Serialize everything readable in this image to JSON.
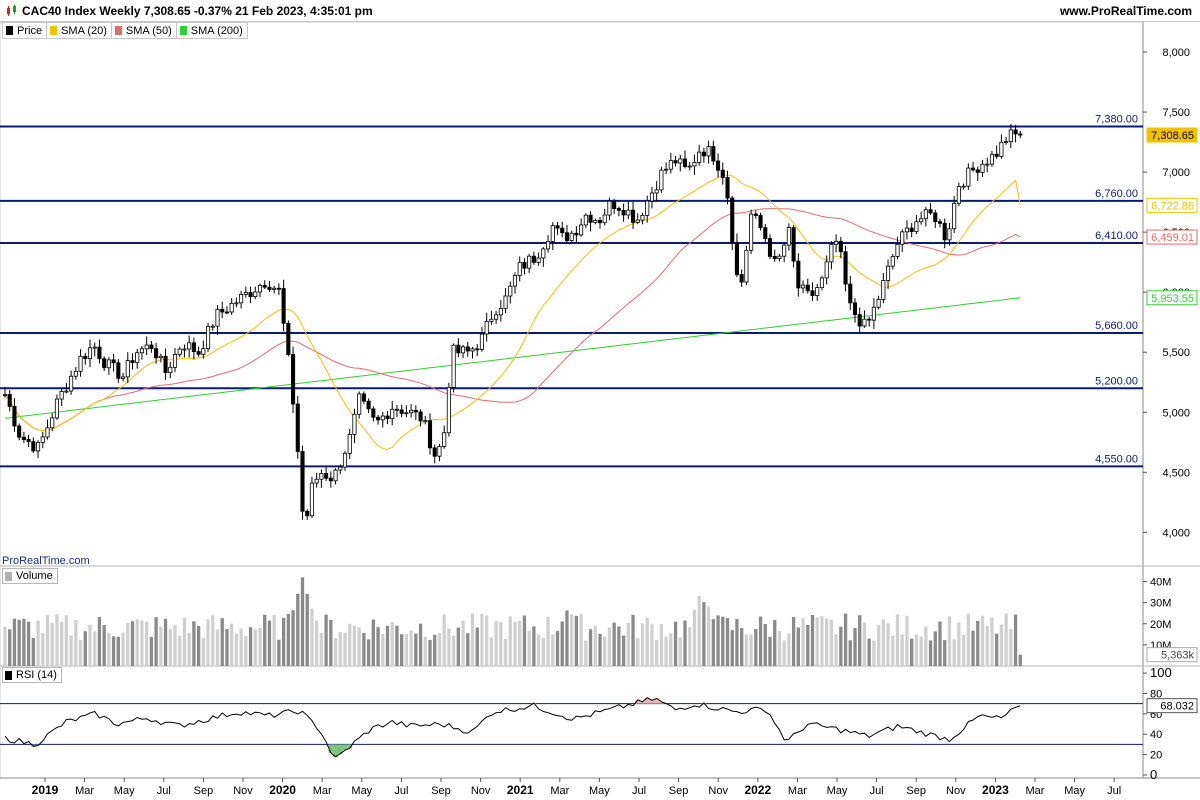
{
  "header": {
    "title": "CAC40 Index Weekly 7,308.65 -0.37% 21 Feb 2023, 4:35:01 pm",
    "site": "www.ProRealTime.com"
  },
  "legend": [
    {
      "label": "Price",
      "color": "#000000"
    },
    {
      "label": "SMA (20)",
      "color": "#f2c200"
    },
    {
      "label": "SMA (50)",
      "color": "#e06c6c"
    },
    {
      "label": "SMA (200)",
      "color": "#2fd02f"
    }
  ],
  "watermark": "ProRealTime.com",
  "volume_label": "Volume",
  "rsi_label": "RSI (14)",
  "chart_data": [
    {
      "type": "candlestick",
      "title": "CAC40 Index Weekly",
      "price_axis": {
        "ticks": [
          4000,
          4500,
          5000,
          5500,
          6000,
          6500,
          7000,
          7500,
          8000
        ],
        "tick_labels": [
          "4,000",
          "4,500",
          "5,000",
          "5,500",
          "6,000",
          "6,500",
          "7,000",
          "7,500",
          "8,000"
        ],
        "range": [
          3720,
          8250
        ]
      },
      "time_axis": {
        "labels": [
          "2019",
          "Mar",
          "May",
          "Jul",
          "Sep",
          "Nov",
          "2020",
          "Mar",
          "May",
          "Jul",
          "Sep",
          "Nov",
          "2021",
          "Mar",
          "May",
          "Jul",
          "Sep",
          "Nov",
          "2022",
          "Mar",
          "May",
          "Jul",
          "Sep",
          "Nov",
          "2023",
          "Mar",
          "May",
          "Jul"
        ],
        "bold": [
          "2019",
          "2020",
          "2021",
          "2022",
          "2023"
        ],
        "range": [
          "2019-01",
          "2023-08"
        ]
      },
      "horizontal_levels": [
        {
          "value": 7380,
          "label": "7,380.00"
        },
        {
          "value": 6760,
          "label": "6,760.00"
        },
        {
          "value": 6410,
          "label": "6,410.00"
        },
        {
          "value": 5660,
          "label": "5,660.00"
        },
        {
          "value": 5200,
          "label": "5,200.00"
        },
        {
          "value": 4550,
          "label": "4,550.00"
        }
      ],
      "price_badges": [
        {
          "label": "7,308.65",
          "value": 7308.65,
          "color": "#f2c200",
          "style": "filled"
        },
        {
          "label": "6,722.86",
          "value": 6722.86,
          "color": "#f2c200",
          "style": "outline"
        },
        {
          "label": "6,459.01",
          "value": 6459.01,
          "color": "#e06c6c",
          "style": "outline"
        },
        {
          "label": "5,953.55",
          "value": 5953.55,
          "color": "#2fd02f",
          "style": "outline"
        }
      ],
      "price_close_anchors": [
        {
          "t": 0.0,
          "v": 5150
        },
        {
          "t": 0.018,
          "v": 4800
        },
        {
          "t": 0.04,
          "v": 4700
        },
        {
          "t": 0.063,
          "v": 5100
        },
        {
          "t": 0.09,
          "v": 5450
        },
        {
          "t": 0.105,
          "v": 5560
        },
        {
          "t": 0.12,
          "v": 5400
        },
        {
          "t": 0.14,
          "v": 5300
        },
        {
          "t": 0.155,
          "v": 5500
        },
        {
          "t": 0.175,
          "v": 5560
        },
        {
          "t": 0.19,
          "v": 5330
        },
        {
          "t": 0.21,
          "v": 5580
        },
        {
          "t": 0.23,
          "v": 5500
        },
        {
          "t": 0.25,
          "v": 5800
        },
        {
          "t": 0.27,
          "v": 5900
        },
        {
          "t": 0.29,
          "v": 6000
        },
        {
          "t": 0.31,
          "v": 6100
        },
        {
          "t": 0.325,
          "v": 6010
        },
        {
          "t": 0.335,
          "v": 5500
        },
        {
          "t": 0.345,
          "v": 4900
        },
        {
          "t": 0.355,
          "v": 4000
        },
        {
          "t": 0.365,
          "v": 4400
        },
        {
          "t": 0.375,
          "v": 4500
        },
        {
          "t": 0.39,
          "v": 4450
        },
        {
          "t": 0.41,
          "v": 4800
        },
        {
          "t": 0.42,
          "v": 5100
        },
        {
          "t": 0.44,
          "v": 4900
        },
        {
          "t": 0.46,
          "v": 5050
        },
        {
          "t": 0.48,
          "v": 5000
        },
        {
          "t": 0.495,
          "v": 4950
        },
        {
          "t": 0.51,
          "v": 4650
        },
        {
          "t": 0.52,
          "v": 4750
        },
        {
          "t": 0.53,
          "v": 5500
        },
        {
          "t": 0.55,
          "v": 5500
        },
        {
          "t": 0.565,
          "v": 5600
        },
        {
          "t": 0.58,
          "v": 5850
        },
        {
          "t": 0.595,
          "v": 5950
        },
        {
          "t": 0.61,
          "v": 6200
        },
        {
          "t": 0.63,
          "v": 6300
        },
        {
          "t": 0.65,
          "v": 6550
        },
        {
          "t": 0.66,
          "v": 6450
        },
        {
          "t": 0.675,
          "v": 6500
        },
        {
          "t": 0.69,
          "v": 6650
        },
        {
          "t": 0.705,
          "v": 6600
        },
        {
          "t": 0.72,
          "v": 6750
        },
        {
          "t": 0.735,
          "v": 6700
        },
        {
          "t": 0.75,
          "v": 6600
        },
        {
          "t": 0.765,
          "v": 6800
        },
        {
          "t": 0.78,
          "v": 7000
        },
        {
          "t": 0.795,
          "v": 7100
        },
        {
          "t": 0.81,
          "v": 7000
        },
        {
          "t": 0.825,
          "v": 7200
        },
        {
          "t": 0.84,
          "v": 7150
        },
        {
          "t": 0.855,
          "v": 6950
        },
        {
          "t": 0.87,
          "v": 6050
        },
        {
          "t": 0.875,
          "v": 6100
        },
        {
          "t": 0.885,
          "v": 6650
        },
        {
          "t": 0.9,
          "v": 6500
        },
        {
          "t": 0.915,
          "v": 6200
        },
        {
          "t": 0.93,
          "v": 6500
        },
        {
          "t": 0.94,
          "v": 6050
        },
        {
          "t": 0.955,
          "v": 5950
        },
        {
          "t": 0.97,
          "v": 6100
        },
        {
          "t": 0.985,
          "v": 6450
        },
        {
          "t": 0.995,
          "v": 6200
        },
        {
          "t": 1.0,
          "v": 5900
        }
      ],
      "price_close_anchors_2": [
        {
          "t": 0.0,
          "v": 5900
        },
        {
          "t": 0.06,
          "v": 5700
        },
        {
          "t": 0.1,
          "v": 5950
        },
        {
          "t": 0.16,
          "v": 6400
        },
        {
          "t": 0.22,
          "v": 6600
        },
        {
          "t": 0.28,
          "v": 6650
        },
        {
          "t": 0.32,
          "v": 6450
        },
        {
          "t": 0.36,
          "v": 6900
        },
        {
          "t": 0.42,
          "v": 7050
        },
        {
          "t": 0.48,
          "v": 7150
        },
        {
          "t": 0.52,
          "v": 7300
        },
        {
          "t": 0.56,
          "v": 7310
        }
      ],
      "sma20_last": 6722.86,
      "sma50_last": 6459.01,
      "sma200_last": 5953.55,
      "last_close": 7308.65
    },
    {
      "type": "bar",
      "title": "Volume",
      "tick_labels": [
        "10M",
        "20M",
        "30M",
        "40M"
      ],
      "ticks": [
        10,
        20,
        30,
        40
      ],
      "range": [
        0,
        45
      ],
      "last_value_label": "5,363k",
      "last_value": 5.363,
      "typical_range_millions": [
        12,
        25
      ],
      "peaks": [
        {
          "t": 0.293,
          "v": 42
        },
        {
          "t": 0.3,
          "v": 30
        },
        {
          "t": 0.555,
          "v": 28
        },
        {
          "t": 0.685,
          "v": 35
        },
        {
          "t": 0.69,
          "v": 32
        }
      ]
    },
    {
      "type": "line",
      "title": "RSI (14)",
      "ticks": [
        0,
        20,
        40,
        60,
        80,
        100
      ],
      "tick_labels": [
        "0",
        "20",
        "40",
        "60",
        "80",
        "100"
      ],
      "range": [
        -3,
        106
      ],
      "levels": [
        30,
        70
      ],
      "last_value_label": "68.032",
      "last_value": 68.032,
      "anchors": [
        {
          "t": 0.0,
          "v": 36
        },
        {
          "t": 0.03,
          "v": 30
        },
        {
          "t": 0.06,
          "v": 52
        },
        {
          "t": 0.09,
          "v": 60
        },
        {
          "t": 0.11,
          "v": 50
        },
        {
          "t": 0.14,
          "v": 56
        },
        {
          "t": 0.17,
          "v": 48
        },
        {
          "t": 0.2,
          "v": 55
        },
        {
          "t": 0.23,
          "v": 62
        },
        {
          "t": 0.26,
          "v": 58
        },
        {
          "t": 0.29,
          "v": 63
        },
        {
          "t": 0.31,
          "v": 45
        },
        {
          "t": 0.325,
          "v": 15
        },
        {
          "t": 0.34,
          "v": 28
        },
        {
          "t": 0.36,
          "v": 45
        },
        {
          "t": 0.38,
          "v": 52
        },
        {
          "t": 0.4,
          "v": 48
        },
        {
          "t": 0.43,
          "v": 50
        },
        {
          "t": 0.46,
          "v": 42
        },
        {
          "t": 0.48,
          "v": 62
        },
        {
          "t": 0.52,
          "v": 68
        },
        {
          "t": 0.56,
          "v": 55
        },
        {
          "t": 0.6,
          "v": 65
        },
        {
          "t": 0.64,
          "v": 75
        },
        {
          "t": 0.66,
          "v": 64
        },
        {
          "t": 0.68,
          "v": 70
        },
        {
          "t": 0.72,
          "v": 62
        },
        {
          "t": 0.75,
          "v": 65
        },
        {
          "t": 0.77,
          "v": 32
        },
        {
          "t": 0.79,
          "v": 50
        },
        {
          "t": 0.82,
          "v": 45
        },
        {
          "t": 0.85,
          "v": 38
        },
        {
          "t": 0.88,
          "v": 48
        },
        {
          "t": 0.91,
          "v": 40
        },
        {
          "t": 0.93,
          "v": 35
        },
        {
          "t": 0.96,
          "v": 58
        },
        {
          "t": 0.98,
          "v": 55
        },
        {
          "t": 1.0,
          "v": 68
        }
      ]
    }
  ]
}
